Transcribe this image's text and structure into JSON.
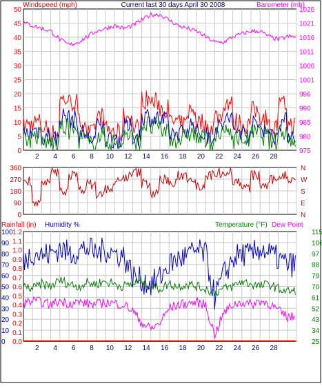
{
  "colors": {
    "wind": "#ff0000",
    "gust": "#ff0000",
    "wind_avg": "#0000cc",
    "wind_green": "#008000",
    "barometer": "#ff00ff",
    "direction": "#cc0000",
    "humidity": "#0000cc",
    "temperature": "#008000",
    "dewpoint": "#ff00ff",
    "rainfall": "#ff0000",
    "grid": "#c8c8c8",
    "frame": "#000000",
    "title": "#000080"
  },
  "header": {
    "left_label": "Windspeed (mph)",
    "title": "Current last 30 days April 30 2008",
    "right_label": "Barometer (mb)"
  },
  "panel3_header": {
    "rainfall_label": "Rainfall (in)",
    "humidity_label": "Humidity %",
    "temperature_label": "Temperature (°F)",
    "dewpoint_label": "Dew Point"
  },
  "chart_data": [
    {
      "type": "line",
      "panel": "wind-barometer",
      "x_day_ticks": [
        "2",
        "4",
        "6",
        "8",
        "10",
        "12",
        "14",
        "16",
        "18",
        "20",
        "22",
        "24",
        "26",
        "28"
      ],
      "left_axis": {
        "label": "Windspeed (mph)",
        "ticks": [
          "0",
          "5",
          "10",
          "15",
          "20",
          "25",
          "30",
          "35",
          "40",
          "45",
          "50"
        ],
        "ylim": [
          0,
          50
        ]
      },
      "right_axis": {
        "label": "Barometer (mb)",
        "ticks": [
          "975",
          "980",
          "985",
          "990",
          "996",
          "1001",
          "1006",
          "1011",
          "1016",
          "1021",
          "1026"
        ],
        "ylim": [
          975,
          1026
        ]
      },
      "series": [
        {
          "name": "Wind gust",
          "color": "red",
          "axis": "left",
          "day_values": [
            9,
            10,
            8,
            6,
            18,
            17,
            10,
            6,
            12,
            7,
            6,
            12,
            8,
            18,
            17,
            15,
            10,
            9,
            14,
            10,
            8,
            12,
            17,
            10,
            9,
            14,
            12,
            8,
            16,
            9
          ]
        },
        {
          "name": "Average wind",
          "color": "blue",
          "axis": "left",
          "day_values": [
            6,
            7,
            5,
            4,
            12,
            11,
            6,
            4,
            8,
            4,
            4,
            8,
            5,
            12,
            11,
            10,
            6,
            6,
            9,
            6,
            5,
            8,
            11,
            7,
            6,
            9,
            8,
            5,
            10,
            6
          ]
        },
        {
          "name": "Wind",
          "color": "green",
          "axis": "left",
          "day_values": [
            4,
            5,
            3,
            2,
            8,
            7,
            4,
            2,
            5,
            3,
            2,
            5,
            3,
            9,
            8,
            7,
            4,
            4,
            6,
            4,
            3,
            5,
            7,
            4,
            4,
            6,
            5,
            3,
            7,
            4
          ]
        },
        {
          "name": "Barometer",
          "color": "magenta",
          "axis": "right",
          "day_values": [
            1021,
            1020,
            1019,
            1018,
            1015,
            1013,
            1014,
            1016,
            1018,
            1019,
            1020,
            1019,
            1020,
            1022,
            1024,
            1024,
            1022,
            1020,
            1019,
            1018,
            1016,
            1014,
            1014,
            1016,
            1017,
            1018,
            1018,
            1016,
            1015,
            1016
          ]
        }
      ]
    },
    {
      "type": "line",
      "panel": "wind-direction",
      "left_axis": {
        "ticks": [
          "0",
          "90",
          "180",
          "270",
          "360"
        ],
        "ylim": [
          0,
          360
        ]
      },
      "right_axis": {
        "ticks": [
          "N",
          "E",
          "S",
          "W",
          "N"
        ]
      },
      "series": [
        {
          "name": "Wind direction",
          "color": "red",
          "day_values": [
            260,
            90,
            230,
            320,
            180,
            300,
            200,
            230,
            150,
            200,
            250,
            290,
            320,
            240,
            160,
            270,
            230,
            300,
            280,
            220,
            300,
            320,
            330,
            250,
            200,
            300,
            220,
            260,
            300,
            270
          ]
        }
      ]
    },
    {
      "type": "line",
      "panel": "humidity-temperature-rain",
      "rainfall_axis": {
        "label": "Rainfall (in)",
        "ticks": [
          "0.0",
          "0.1",
          "0.2",
          "0.3",
          "0.4",
          "0.5",
          "0.6",
          "0.7",
          "0.8",
          "0.9",
          "1.0",
          "1.1",
          "1.2"
        ],
        "ylim": [
          0,
          1.2
        ]
      },
      "humidity_axis": {
        "label": "Humidity %",
        "ticks": [
          "0",
          "10",
          "20",
          "30",
          "40",
          "50",
          "60",
          "70",
          "80",
          "90",
          "100"
        ],
        "ylim": [
          0,
          100
        ]
      },
      "temperature_axis": {
        "label": "Temperature (°F)",
        "ticks": [
          "25",
          "34",
          "43",
          "52",
          "61",
          "70",
          "79",
          "88",
          "97",
          "106",
          "115"
        ],
        "ylim": [
          25,
          115
        ]
      },
      "series": [
        {
          "name": "Humidity",
          "color": "blue",
          "axis": "humidity",
          "day_values": [
            72,
            82,
            78,
            80,
            85,
            80,
            82,
            85,
            80,
            84,
            80,
            78,
            60,
            55,
            52,
            58,
            70,
            75,
            78,
            82,
            80,
            40,
            60,
            75,
            80,
            78,
            85,
            80,
            75,
            70
          ]
        },
        {
          "name": "Temperature",
          "color": "green",
          "axis": "temperature",
          "day_values": [
            70,
            68,
            72,
            70,
            75,
            72,
            70,
            73,
            72,
            74,
            72,
            70,
            72,
            74,
            70,
            68,
            72,
            70,
            72,
            70,
            68,
            65,
            68,
            70,
            74,
            72,
            70,
            72,
            68,
            66
          ]
        },
        {
          "name": "Dew Point",
          "color": "magenta",
          "axis": "temperature",
          "day_values": [
            56,
            58,
            57,
            55,
            58,
            56,
            57,
            56,
            55,
            57,
            56,
            55,
            50,
            40,
            35,
            40,
            52,
            55,
            56,
            57,
            55,
            30,
            48,
            55,
            57,
            55,
            58,
            56,
            50,
            45
          ]
        },
        {
          "name": "Rainfall",
          "color": "red",
          "axis": "rainfall",
          "day_values": [
            0,
            0,
            0,
            0,
            0,
            0,
            0,
            0,
            0,
            0,
            0,
            0,
            0,
            0,
            0,
            0,
            0,
            0,
            0,
            0,
            0,
            0,
            0,
            0,
            0,
            0,
            0,
            0,
            0,
            0
          ]
        }
      ]
    }
  ]
}
